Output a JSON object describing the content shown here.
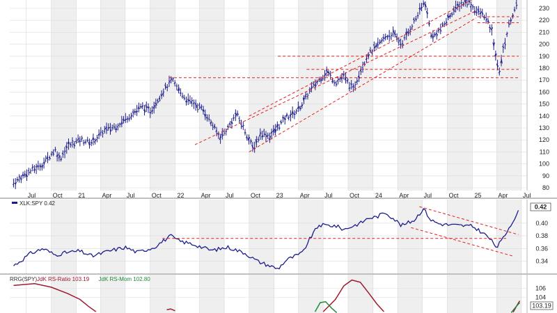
{
  "chart_data": [
    {
      "type": "bar",
      "style": "ohlc",
      "x_ticks": [
        "Jul",
        "Oct",
        "21",
        "Apr",
        "Jul",
        "Oct",
        "22",
        "Apr",
        "Jul",
        "Oct",
        "23",
        "Apr",
        "Jul",
        "Oct",
        "24",
        "Apr",
        "Jul",
        "Oct",
        "25",
        "Apr",
        "Jul"
      ],
      "y_ticks": [
        80,
        90,
        100,
        110,
        120,
        130,
        140,
        150,
        160,
        170,
        180,
        190,
        200,
        210,
        220,
        230
      ],
      "ylim": [
        75,
        240
      ],
      "colors": {
        "bars": "#1c1c8c",
        "annotation": "#e0201c",
        "grid": "#d8d8d8"
      },
      "series": [
        {
          "points": [
            [
              "2020-05-15",
              84
            ],
            [
              "2020-07-01",
              92
            ],
            [
              "2020-09-01",
              100
            ],
            [
              "2020-10-15",
              112
            ],
            [
              "2020-11-01",
              104
            ],
            [
              "2020-12-01",
              115
            ],
            [
              "2021-01-15",
              120
            ],
            [
              "2021-03-01",
              118
            ],
            [
              "2021-04-15",
              128
            ],
            [
              "2021-06-01",
              132
            ],
            [
              "2021-07-15",
              140
            ],
            [
              "2021-09-01",
              148
            ],
            [
              "2021-10-01",
              144
            ],
            [
              "2021-11-15",
              160
            ],
            [
              "2021-12-20",
              170
            ],
            [
              "2022-01-10",
              163
            ],
            [
              "2022-02-15",
              153
            ],
            [
              "2022-03-15",
              150
            ],
            [
              "2022-04-15",
              145
            ],
            [
              "2022-05-15",
              134
            ],
            [
              "2022-06-15",
              122
            ],
            [
              "2022-07-15",
              130
            ],
            [
              "2022-08-15",
              142
            ],
            [
              "2022-09-15",
              128
            ],
            [
              "2022-10-15",
              113
            ],
            [
              "2022-11-15",
              126
            ],
            [
              "2022-12-15",
              123
            ],
            [
              "2023-01-15",
              131
            ],
            [
              "2023-02-15",
              139
            ],
            [
              "2023-03-15",
              142
            ],
            [
              "2023-04-15",
              150
            ],
            [
              "2023-05-15",
              162
            ],
            [
              "2023-06-15",
              170
            ],
            [
              "2023-07-15",
              177
            ],
            [
              "2023-08-15",
              168
            ],
            [
              "2023-09-15",
              173
            ],
            [
              "2023-10-20",
              162
            ],
            [
              "2023-11-15",
              178
            ],
            [
              "2023-12-15",
              192
            ],
            [
              "2024-01-15",
              198
            ],
            [
              "2024-02-15",
              206
            ],
            [
              "2024-03-15",
              209
            ],
            [
              "2024-04-15",
              200
            ],
            [
              "2024-05-15",
              212
            ],
            [
              "2024-06-15",
              225
            ],
            [
              "2024-07-10",
              236
            ],
            [
              "2024-08-05",
              205
            ],
            [
              "2024-09-15",
              215
            ],
            [
              "2024-10-15",
              226
            ],
            [
              "2024-11-15",
              233
            ],
            [
              "2024-12-15",
              236
            ],
            [
              "2025-01-15",
              228
            ],
            [
              "2025-02-15",
              224
            ],
            [
              "2025-03-15",
              210
            ],
            [
              "2025-04-08",
              175
            ],
            [
              "2025-04-25",
              195
            ],
            [
              "2025-05-20",
              220
            ],
            [
              "2025-06-15",
              233
            ]
          ]
        }
      ],
      "annotations": {
        "channel_upper": [
          [
            "2022-10-01",
            140
          ],
          [
            "2025-01-15",
            239
          ]
        ],
        "channel_lower": [
          [
            "2022-03-15",
            116
          ],
          [
            "2025-01-15",
            228
          ]
        ],
        "channel_lower2": [
          [
            "2022-10-01",
            110
          ],
          [
            "2025-01-15",
            222
          ]
        ],
        "h_lines": [
          {
            "y": 172,
            "from": "2021-12-10"
          },
          {
            "y": 190,
            "from": "2023-01-15"
          },
          {
            "y": 179,
            "from": "2023-05-01"
          },
          {
            "y": 218,
            "from": "2025-01-20"
          },
          {
            "y": 223,
            "from": "2025-01-20"
          }
        ]
      }
    },
    {
      "type": "line",
      "legend": "XLK:SPY 0.42",
      "last_value_label": "0.42",
      "y_ticks": [
        0.34,
        0.36,
        0.38,
        0.4
      ],
      "ylim": [
        0.322,
        0.436
      ],
      "colors": {
        "line": "#1c1c8c",
        "annotation": "#e0201c"
      },
      "series": [
        {
          "points": [
            [
              "2020-05-15",
              0.333
            ],
            [
              "2020-06-15",
              0.342
            ],
            [
              "2020-07-15",
              0.352
            ],
            [
              "2020-09-01",
              0.36
            ],
            [
              "2020-10-15",
              0.35
            ],
            [
              "2020-12-01",
              0.354
            ],
            [
              "2021-01-15",
              0.356
            ],
            [
              "2021-03-01",
              0.348
            ],
            [
              "2021-05-01",
              0.356
            ],
            [
              "2021-07-01",
              0.362
            ],
            [
              "2021-08-15",
              0.354
            ],
            [
              "2021-10-15",
              0.362
            ],
            [
              "2021-12-15",
              0.38
            ],
            [
              "2022-01-15",
              0.372
            ],
            [
              "2022-03-15",
              0.366
            ],
            [
              "2022-05-15",
              0.357
            ],
            [
              "2022-07-15",
              0.362
            ],
            [
              "2022-09-15",
              0.353
            ],
            [
              "2022-11-01",
              0.34
            ],
            [
              "2022-12-15",
              0.333
            ],
            [
              "2023-01-15",
              0.328
            ],
            [
              "2023-02-15",
              0.342
            ],
            [
              "2023-04-15",
              0.353
            ],
            [
              "2023-05-15",
              0.377
            ],
            [
              "2023-06-15",
              0.397
            ],
            [
              "2023-08-15",
              0.396
            ],
            [
              "2023-09-15",
              0.39
            ],
            [
              "2023-11-15",
              0.4
            ],
            [
              "2023-12-15",
              0.408
            ],
            [
              "2024-01-15",
              0.41
            ],
            [
              "2024-02-15",
              0.417
            ],
            [
              "2024-03-15",
              0.408
            ],
            [
              "2024-04-15",
              0.396
            ],
            [
              "2024-06-01",
              0.405
            ],
            [
              "2024-07-05",
              0.423
            ],
            [
              "2024-08-01",
              0.405
            ],
            [
              "2024-09-01",
              0.399
            ],
            [
              "2024-10-15",
              0.397
            ],
            [
              "2024-12-01",
              0.396
            ],
            [
              "2025-01-01",
              0.395
            ],
            [
              "2025-02-01",
              0.387
            ],
            [
              "2025-03-01",
              0.378
            ],
            [
              "2025-04-01",
              0.362
            ],
            [
              "2025-04-25",
              0.376
            ],
            [
              "2025-05-20",
              0.396
            ],
            [
              "2025-06-20",
              0.418
            ]
          ]
        }
      ],
      "annotations": {
        "support": {
          "y": 0.376,
          "from": "2021-11-15"
        },
        "channel_upper": [
          [
            "2024-06-20",
            0.426
          ],
          [
            "2025-06-20",
            0.382
          ]
        ],
        "channel_lower": [
          [
            "2024-05-20",
            0.393
          ],
          [
            "2025-06-01",
            0.348
          ]
        ]
      }
    },
    {
      "type": "line",
      "legend": [
        {
          "text": "RRG(SPY)",
          "color": "#333333"
        },
        {
          "text": "JdK RS-Ratio 103.19",
          "color": "#a0192e"
        },
        {
          "text": "JdK RS-Mom 102.80",
          "color": "#1e8a3a"
        }
      ],
      "last_value_label": "103.19",
      "y_ticks": [
        104,
        106
      ],
      "ylim": [
        100.5,
        108.5
      ],
      "series": [
        {
          "name": "JdK RS-Ratio",
          "color": "#a0192e",
          "points": [
            [
              "2020-05-15",
              106.6
            ],
            [
              "2020-08-01",
              107.0
            ],
            [
              "2020-10-01",
              106.2
            ],
            [
              "2020-12-01",
              104.8
            ],
            [
              "2021-01-15",
              103.5
            ],
            [
              "2021-02-15",
              102.0
            ],
            [
              "2021-03-15",
              100.8
            ]
          ]
        },
        {
          "name": "JdK RS-Ratio",
          "color": "#a0192e",
          "points": [
            [
              "2021-12-01",
              101.2
            ],
            [
              "2021-12-15",
              101.4
            ],
            [
              "2022-01-01",
              101.0
            ]
          ]
        },
        {
          "name": "JdK RS-Ratio",
          "color": "#a0192e",
          "points": [
            [
              "2023-07-01",
              100.8
            ],
            [
              "2023-08-15",
              103.5
            ],
            [
              "2023-09-15",
              106.5
            ],
            [
              "2023-10-15",
              107.8
            ],
            [
              "2023-11-15",
              107.3
            ],
            [
              "2023-12-15",
              105.0
            ],
            [
              "2024-01-15",
              102.5
            ],
            [
              "2024-02-10",
              100.8
            ]
          ]
        },
        {
          "name": "JdK RS-Mom",
          "color": "#1e8a3a",
          "points": [
            [
              "2023-06-01",
              100.8
            ],
            [
              "2023-06-20",
              102.8
            ],
            [
              "2023-07-10",
              103.0
            ],
            [
              "2023-08-01",
              101.6
            ],
            [
              "2023-08-20",
              100.6
            ]
          ]
        },
        {
          "name": "JdK RS-Ratio",
          "color": "#a0192e",
          "points": [
            [
              "2025-06-01",
              100.7
            ],
            [
              "2025-06-15",
              102.2
            ],
            [
              "2025-06-25",
              103.19
            ]
          ]
        },
        {
          "name": "JdK RS-Mom",
          "color": "#1e8a3a",
          "points": [
            [
              "2025-05-25",
              100.6
            ],
            [
              "2025-06-10",
              101.8
            ],
            [
              "2025-06-25",
              102.8
            ]
          ]
        }
      ]
    }
  ]
}
